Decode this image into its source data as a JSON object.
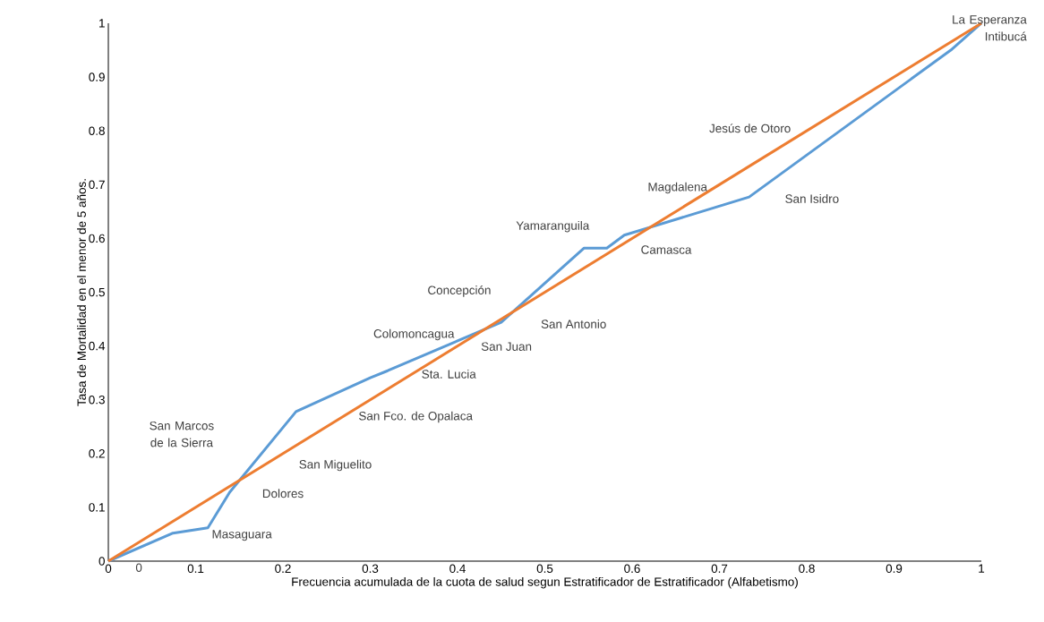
{
  "chart_data": {
    "type": "line",
    "xlabel": "Frecuencia acumulada de la cuota de salud segun Estratificador de Estratificador  (Alfabetismo)",
    "ylabel": "Tasa de Mortalidad en el menor de 5 años.",
    "x": [
      0,
      0.074,
      0.114,
      0.139,
      0.215,
      0.3,
      0.32,
      0.45,
      0.545,
      0.571,
      0.591,
      0.734,
      0.965,
      1
    ],
    "series": [
      {
        "color": "#5b9bd5",
        "values": [
          0,
          0.052,
          0.062,
          0.128,
          0.278,
          0.341,
          0.354,
          0.444,
          0.582,
          0.582,
          0.606,
          0.677,
          0.95,
          1
        ]
      },
      {
        "color": "#ed7d31",
        "x": [
          0,
          1
        ],
        "values": [
          0,
          1
        ]
      }
    ],
    "xlim": [
      0,
      1
    ],
    "ylim": [
      0,
      1
    ],
    "xticks": [
      0,
      0.1,
      0.2,
      0.3,
      0.4,
      0.5,
      0.6,
      0.7,
      0.8,
      0.9,
      1
    ],
    "yticks": [
      0,
      0.1,
      0.2,
      0.3,
      0.4,
      0.5,
      0.6,
      0.7,
      0.8,
      0.9,
      1
    ],
    "grid": false,
    "marker": "none",
    "line_style": "solid",
    "annotations": [
      "0",
      "Masaguara",
      "Dolores",
      "San Miguelito",
      "San Marcos de la Sierra",
      "San Fco. de Opalaca",
      "Sta. Lucia",
      "Colomoncagua",
      "San Juan",
      "Concepción",
      "San Antonio",
      "Yamaranguila",
      "Camasca",
      "Magdalena",
      "Jesús de Otoro",
      "San Isidro",
      "La Esperanza Intibucá"
    ]
  }
}
